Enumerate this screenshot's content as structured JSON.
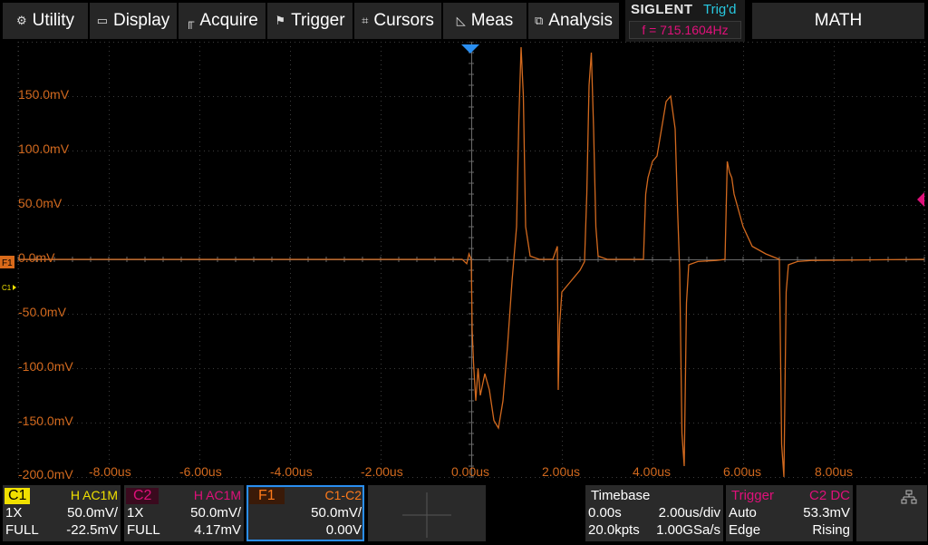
{
  "menu": {
    "utility": "Utility",
    "display": "Display",
    "acquire": "Acquire",
    "trigger": "Trigger",
    "cursors": "Cursors",
    "meas": "Meas",
    "analysis": "Analysis"
  },
  "header": {
    "brand": "SIGLENT",
    "trig_status": "Trig'd",
    "frequency": "f = 715.1604Hz",
    "math_title": "MATH"
  },
  "axes": {
    "y_labels": [
      "150.0mV",
      "100.0mV",
      "50.0mV",
      "0.0mV",
      "-50.0mV",
      "-100.0mV",
      "-150.0mV",
      "-200.0mV"
    ],
    "x_labels": [
      "-8.00us",
      "-6.00us",
      "-4.00us",
      "-2.00us",
      "0.00us",
      "2.00us",
      "4.00us",
      "6.00us",
      "8.00us"
    ]
  },
  "markers": {
    "f1": "F1",
    "c1": "C1"
  },
  "channels": {
    "c1": {
      "name": "C1",
      "flags": "H AC1M",
      "probe": "1X",
      "scale": "50.0mV/",
      "bw": "FULL",
      "offset": "-22.5mV"
    },
    "c2": {
      "name": "C2",
      "flags": "H AC1M",
      "probe": "1X",
      "scale": "50.0mV/",
      "bw": "FULL",
      "offset": "4.17mV"
    },
    "f1": {
      "name": "F1",
      "expr": "C1-C2",
      "scale": "50.0mV/",
      "offset": "0.00V"
    }
  },
  "timebase": {
    "title": "Timebase",
    "delay": "0.00s",
    "scale": "2.00us/div",
    "points": "20.0kpts",
    "rate": "1.00GSa/s"
  },
  "trigger": {
    "title": "Trigger",
    "source": "C2 DC",
    "mode": "Auto",
    "level": "53.3mV",
    "type": "Edge",
    "slope": "Rising"
  },
  "colors": {
    "c1": "#f0e000",
    "c2": "#e0107a",
    "f1": "#ff7a1a",
    "trace": "#d2691e",
    "trig_status": "#28c8e0"
  },
  "icons": {
    "utility": "gear-icon",
    "display": "monitor-icon",
    "acquire": "acquire-icon",
    "trigger": "flag-icon",
    "cursors": "crosshair-icon",
    "meas": "ruler-icon",
    "analysis": "analysis-icon",
    "network": "network-icon"
  },
  "chart_data": {
    "type": "line",
    "xlabel": "",
    "ylabel": "",
    "xlim": [
      -10,
      10
    ],
    "ylim": [
      -200,
      200
    ],
    "x_unit": "us",
    "y_unit": "mV",
    "grid": true,
    "series": [
      {
        "points": [
          [
            -10,
            0
          ],
          [
            -0.2,
            0
          ],
          [
            -0.1,
            -4
          ],
          [
            -0.05,
            5
          ],
          [
            0,
            0
          ],
          [
            0.02,
            -65
          ],
          [
            0.05,
            -95
          ],
          [
            0.1,
            -130
          ],
          [
            0.15,
            -100
          ],
          [
            0.2,
            -125
          ],
          [
            0.3,
            -105
          ],
          [
            0.4,
            -120
          ],
          [
            0.5,
            -148
          ],
          [
            0.6,
            -155
          ],
          [
            0.7,
            -130
          ],
          [
            0.8,
            -80
          ],
          [
            0.9,
            -20
          ],
          [
            1.0,
            30
          ],
          [
            1.05,
            128
          ],
          [
            1.1,
            195
          ],
          [
            1.15,
            150
          ],
          [
            1.2,
            30
          ],
          [
            1.3,
            3
          ],
          [
            1.5,
            0
          ],
          [
            1.8,
            0
          ],
          [
            1.9,
            12
          ],
          [
            1.92,
            -120
          ],
          [
            1.95,
            -60
          ],
          [
            2.0,
            -30
          ],
          [
            2.2,
            -20
          ],
          [
            2.4,
            -10
          ],
          [
            2.5,
            -2
          ],
          [
            2.55,
            60
          ],
          [
            2.6,
            160
          ],
          [
            2.65,
            190
          ],
          [
            2.7,
            120
          ],
          [
            2.75,
            30
          ],
          [
            2.8,
            3
          ],
          [
            3.0,
            0
          ],
          [
            3.5,
            0
          ],
          [
            3.8,
            0
          ],
          [
            3.85,
            60
          ],
          [
            3.9,
            75
          ],
          [
            4.0,
            90
          ],
          [
            4.1,
            95
          ],
          [
            4.2,
            120
          ],
          [
            4.3,
            145
          ],
          [
            4.4,
            150
          ],
          [
            4.5,
            120
          ],
          [
            4.55,
            50
          ],
          [
            4.6,
            -10
          ],
          [
            4.65,
            -160
          ],
          [
            4.7,
            -190
          ],
          [
            4.75,
            -40
          ],
          [
            4.8,
            -5
          ],
          [
            5.0,
            -2
          ],
          [
            5.4,
            -1
          ],
          [
            5.6,
            0
          ],
          [
            5.65,
            90
          ],
          [
            5.7,
            80
          ],
          [
            5.75,
            75
          ],
          [
            5.8,
            60
          ],
          [
            6.0,
            30
          ],
          [
            6.2,
            12
          ],
          [
            6.5,
            5
          ],
          [
            6.8,
            0
          ],
          [
            6.85,
            -170
          ],
          [
            6.9,
            -200
          ],
          [
            6.95,
            -30
          ],
          [
            7.0,
            -5
          ],
          [
            7.2,
            -2
          ],
          [
            7.5,
            -1
          ],
          [
            10,
            0
          ]
        ]
      }
    ]
  }
}
